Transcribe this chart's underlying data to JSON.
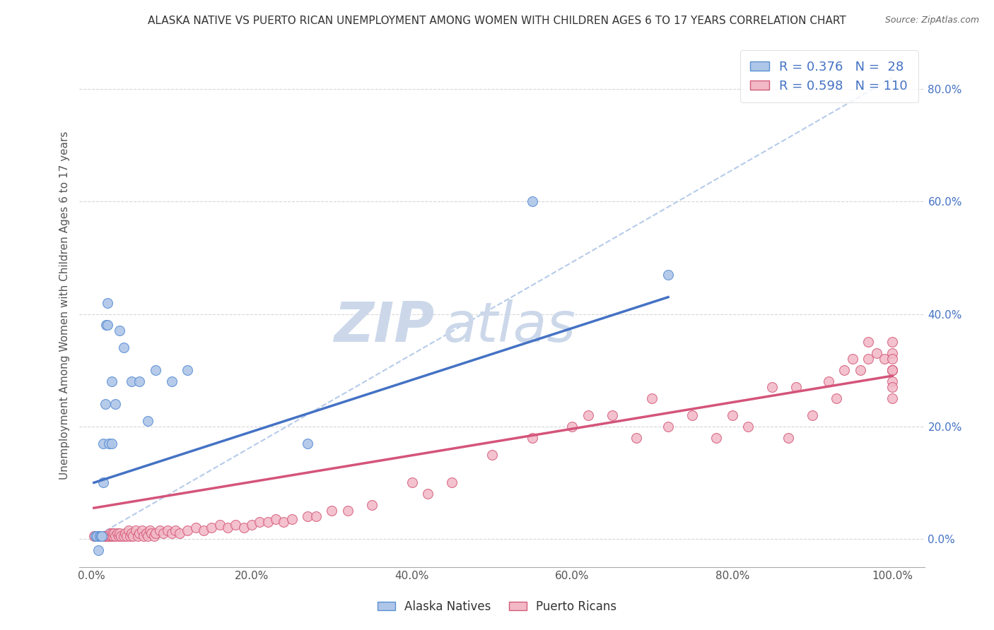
{
  "title": "ALASKA NATIVE VS PUERTO RICAN UNEMPLOYMENT AMONG WOMEN WITH CHILDREN AGES 6 TO 17 YEARS CORRELATION CHART",
  "source": "Source: ZipAtlas.com",
  "ylabel": "Unemployment Among Women with Children Ages 6 to 17 years",
  "alaska_R": 0.376,
  "alaska_N": 28,
  "puerto_R": 0.598,
  "puerto_N": 110,
  "alaska_color": "#aec6e8",
  "alaska_edge_color": "#5b8fd4",
  "alaska_line_color": "#4472c4",
  "puerto_color": "#f2b8c6",
  "puerto_edge_color": "#d45b7a",
  "puerto_line_color": "#d4547a",
  "dashed_line_color": "#aec6e8",
  "watermark_color": "#ccd8ea",
  "background_color": "#ffffff",
  "legend_text_color": "#4472c4",
  "alaska_scatter_x": [
    0.005,
    0.007,
    0.008,
    0.01,
    0.01,
    0.012,
    0.013,
    0.015,
    0.015,
    0.017,
    0.018,
    0.02,
    0.02,
    0.022,
    0.025,
    0.025,
    0.03,
    0.035,
    0.04,
    0.05,
    0.06,
    0.07,
    0.08,
    0.1,
    0.12,
    0.27,
    0.55,
    0.72
  ],
  "alaska_scatter_y": [
    0.005,
    0.005,
    -0.02,
    0.005,
    0.005,
    0.005,
    0.005,
    0.1,
    0.17,
    0.24,
    0.38,
    0.38,
    0.42,
    0.17,
    0.17,
    0.28,
    0.24,
    0.37,
    0.34,
    0.28,
    0.28,
    0.21,
    0.3,
    0.28,
    0.3,
    0.17,
    0.6,
    0.47
  ],
  "alaska_trendline_x": [
    0.003,
    0.72
  ],
  "alaska_trendline_y": [
    0.1,
    0.43
  ],
  "dashed_trendline_x": [
    0.0,
    1.0
  ],
  "dashed_trendline_y": [
    0.0,
    0.82
  ],
  "puerto_scatter_x": [
    0.003,
    0.005,
    0.007,
    0.008,
    0.009,
    0.01,
    0.011,
    0.012,
    0.013,
    0.014,
    0.015,
    0.016,
    0.017,
    0.018,
    0.019,
    0.02,
    0.021,
    0.022,
    0.023,
    0.024,
    0.025,
    0.026,
    0.027,
    0.028,
    0.03,
    0.032,
    0.034,
    0.035,
    0.037,
    0.04,
    0.042,
    0.044,
    0.046,
    0.048,
    0.05,
    0.052,
    0.055,
    0.058,
    0.06,
    0.063,
    0.065,
    0.068,
    0.07,
    0.073,
    0.075,
    0.078,
    0.08,
    0.085,
    0.09,
    0.095,
    0.1,
    0.105,
    0.11,
    0.12,
    0.13,
    0.14,
    0.15,
    0.16,
    0.17,
    0.18,
    0.19,
    0.2,
    0.21,
    0.22,
    0.23,
    0.24,
    0.25,
    0.27,
    0.28,
    0.3,
    0.32,
    0.35,
    0.4,
    0.42,
    0.45,
    0.5,
    0.55,
    0.6,
    0.62,
    0.65,
    0.68,
    0.7,
    0.72,
    0.75,
    0.78,
    0.8,
    0.82,
    0.85,
    0.87,
    0.88,
    0.9,
    0.92,
    0.93,
    0.94,
    0.95,
    0.96,
    0.97,
    0.97,
    0.98,
    0.99,
    1.0,
    1.0,
    1.0,
    1.0,
    1.0,
    1.0,
    1.0,
    1.0,
    1.0,
    1.0
  ],
  "puerto_scatter_y": [
    0.005,
    0.005,
    0.005,
    0.005,
    0.005,
    0.005,
    0.005,
    0.005,
    0.005,
    0.005,
    0.005,
    0.005,
    0.005,
    0.005,
    0.005,
    0.005,
    0.005,
    0.005,
    0.01,
    0.005,
    0.005,
    0.01,
    0.005,
    0.01,
    0.005,
    0.01,
    0.005,
    0.01,
    0.005,
    0.005,
    0.01,
    0.005,
    0.015,
    0.005,
    0.01,
    0.005,
    0.015,
    0.005,
    0.01,
    0.015,
    0.005,
    0.01,
    0.005,
    0.015,
    0.01,
    0.005,
    0.01,
    0.015,
    0.01,
    0.015,
    0.01,
    0.015,
    0.01,
    0.015,
    0.02,
    0.015,
    0.02,
    0.025,
    0.02,
    0.025,
    0.02,
    0.025,
    0.03,
    0.03,
    0.035,
    0.03,
    0.035,
    0.04,
    0.04,
    0.05,
    0.05,
    0.06,
    0.1,
    0.08,
    0.1,
    0.15,
    0.18,
    0.2,
    0.22,
    0.22,
    0.18,
    0.25,
    0.2,
    0.22,
    0.18,
    0.22,
    0.2,
    0.27,
    0.18,
    0.27,
    0.22,
    0.28,
    0.25,
    0.3,
    0.32,
    0.3,
    0.32,
    0.35,
    0.33,
    0.32,
    0.33,
    0.35,
    0.32,
    0.3,
    0.25,
    0.3,
    0.28,
    0.3,
    0.27,
    0.3
  ],
  "puerto_trendline_x": [
    0.003,
    1.0
  ],
  "puerto_trendline_y": [
    0.055,
    0.29
  ],
  "xlim": [
    -0.015,
    1.04
  ],
  "ylim": [
    -0.05,
    0.88
  ]
}
